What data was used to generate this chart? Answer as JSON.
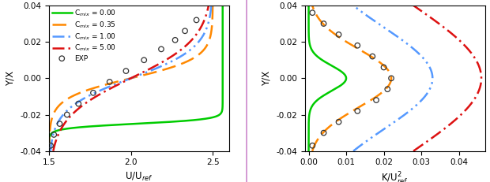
{
  "left_xlabel": "U/U$_{ref}$",
  "right_xlabel": "K/U$^2_{ref}$",
  "ylabel": "Y/X",
  "xlim_left": [
    1.5,
    2.6
  ],
  "xlim_right": [
    -0.001,
    0.047
  ],
  "ylim": [
    -0.04,
    0.04
  ],
  "xticks_left": [
    1.5,
    2.0,
    2.5
  ],
  "xticks_right": [
    0.0,
    0.01,
    0.02,
    0.03,
    0.04
  ],
  "yticks": [
    -0.04,
    -0.02,
    0.0,
    0.02,
    0.04
  ],
  "legend_labels": [
    "C$_{mix}$ = 0.00",
    "C$_{mix}$ = 0.35",
    "C$_{mix}$ = 1.00",
    "C$_{mix}$ = 5.00",
    "EXP"
  ],
  "colors": [
    "#00cc00",
    "#ff8800",
    "#5599ff",
    "#dd1111"
  ],
  "bg_color": "#ffffff",
  "divider_color": "#cc88cc"
}
